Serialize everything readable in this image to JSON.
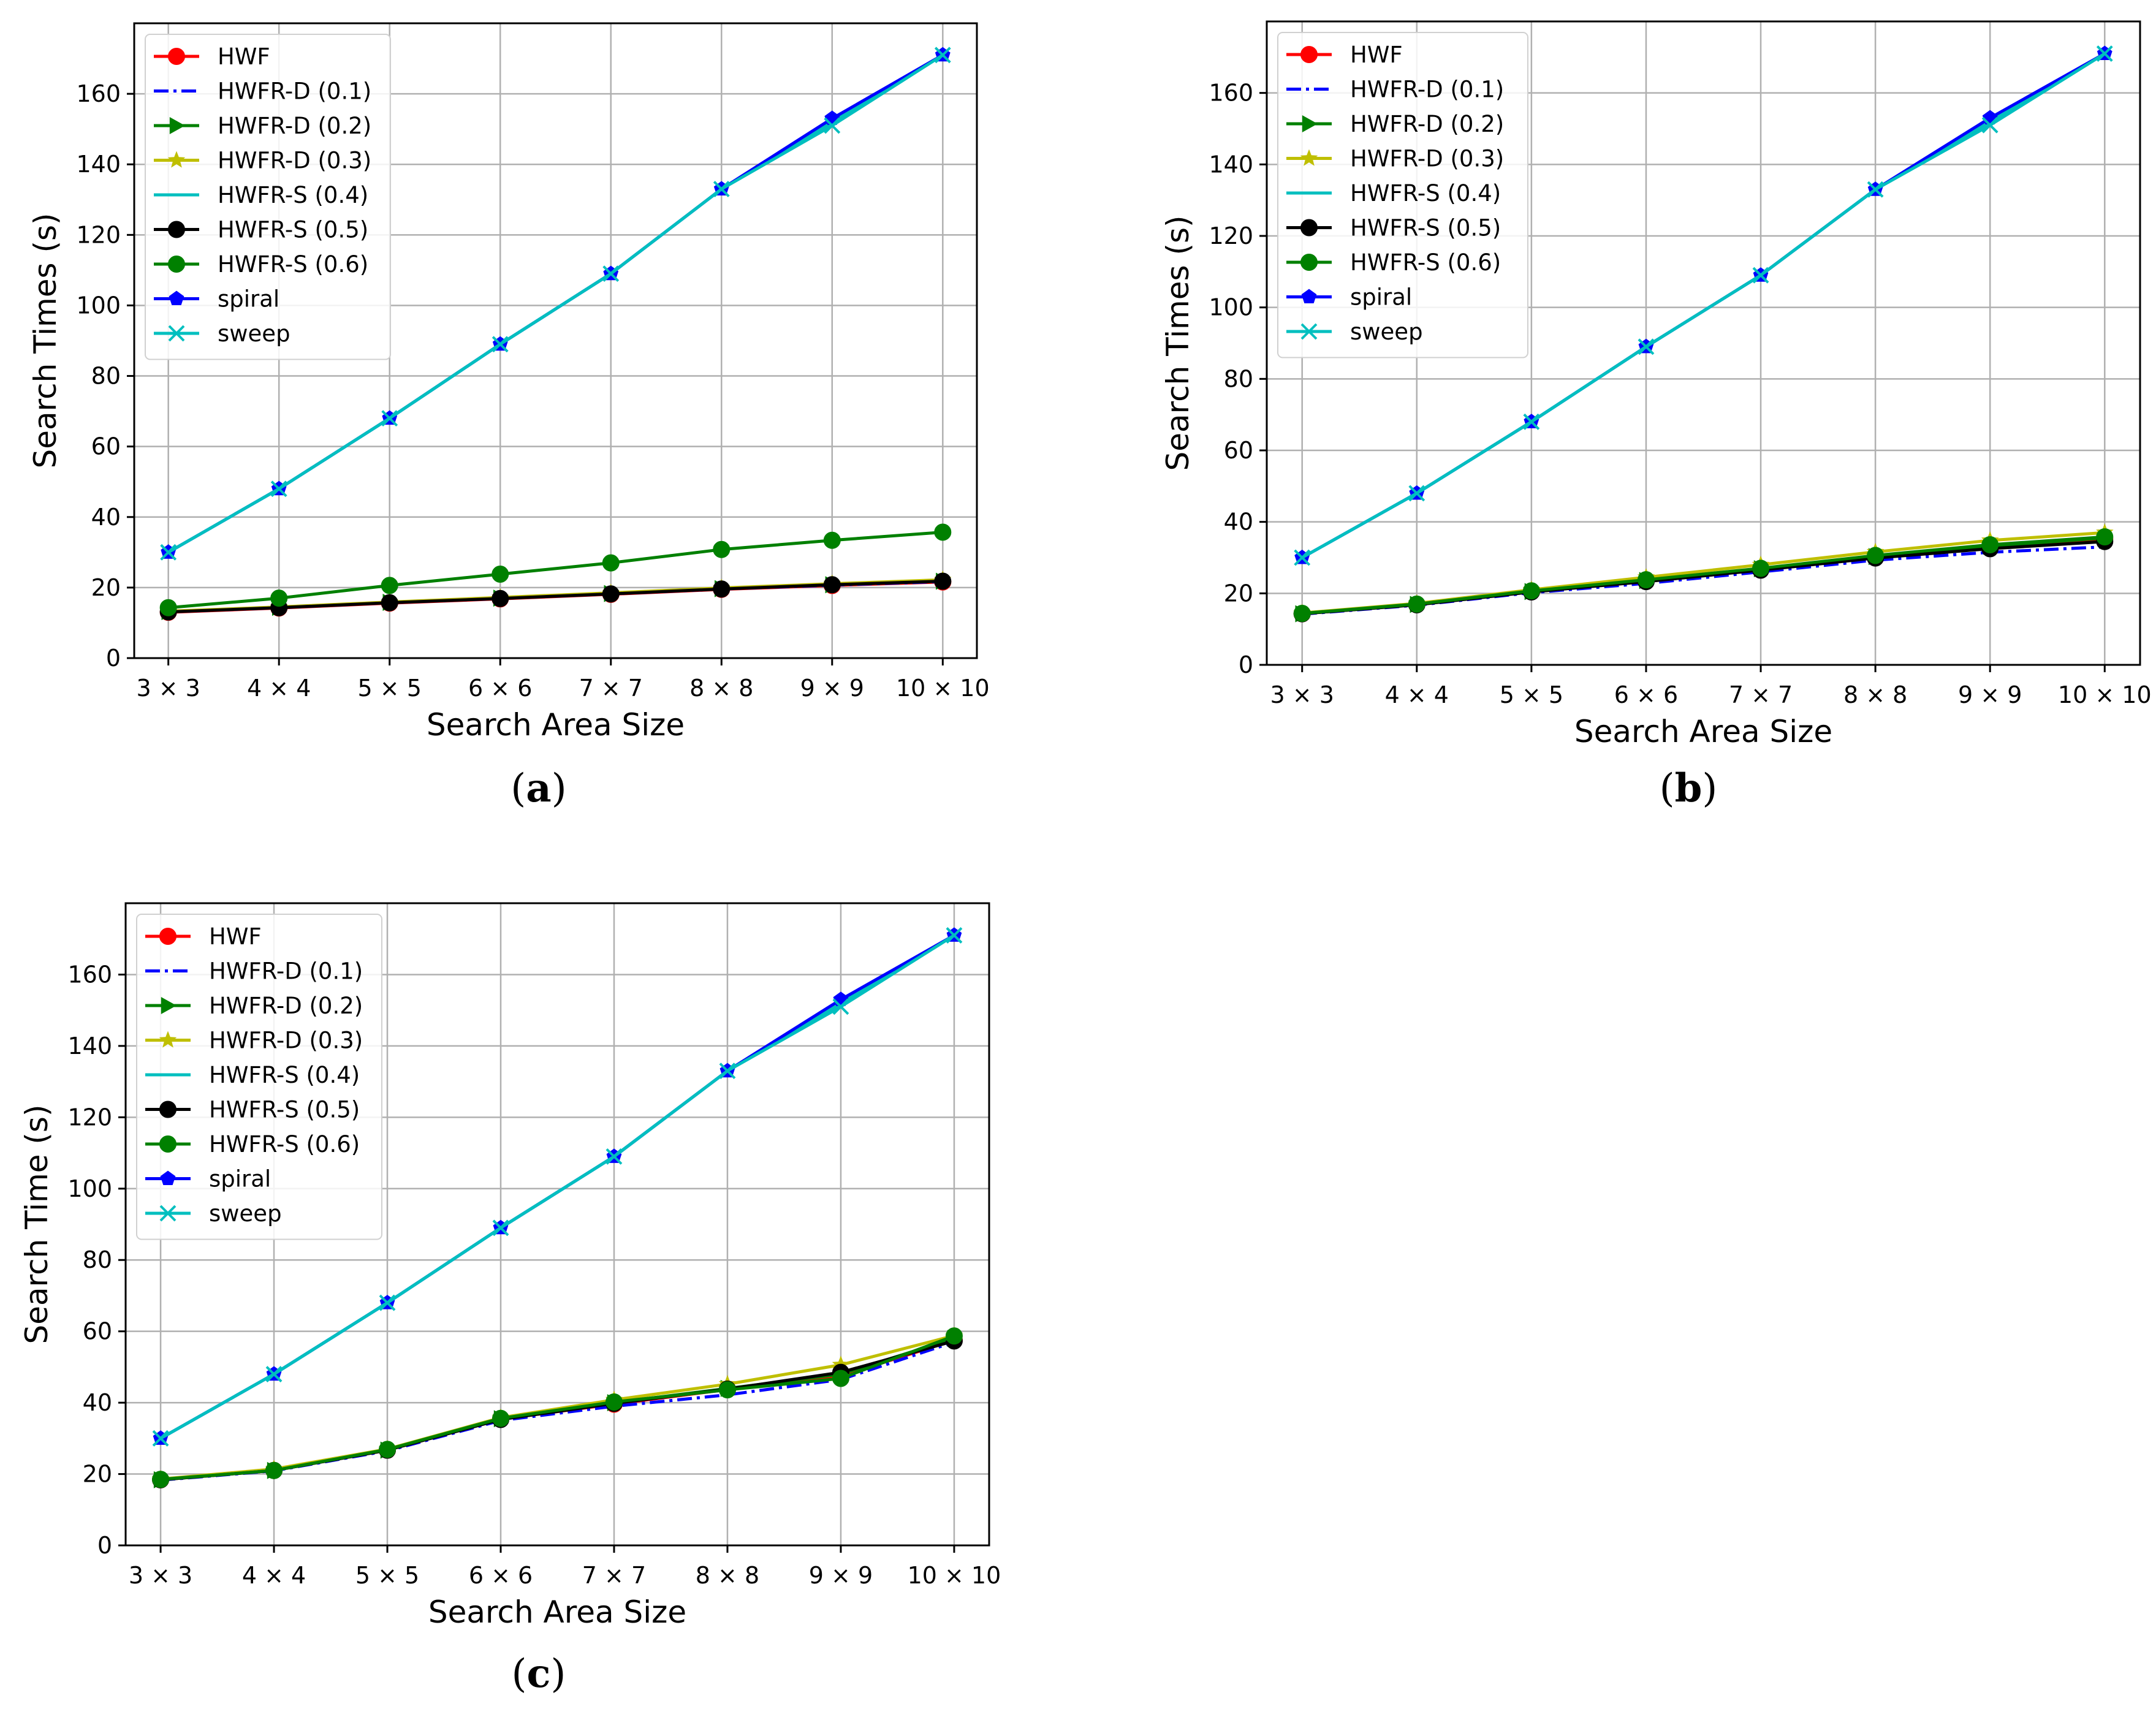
{
  "figure": {
    "panel_labels": [
      "a",
      "b",
      "c"
    ]
  },
  "chart_data": [
    {
      "panel": "a",
      "type": "line",
      "title": "",
      "xlabel": "Search Area Size",
      "ylabel": "Search Times (s)",
      "categories": [
        "3 × 3",
        "4 × 4",
        "5 × 5",
        "6 × 6",
        "7 × 7",
        "8 × 8",
        "9 × 9",
        "10 × 10"
      ],
      "ylim": [
        0,
        180
      ],
      "yticks": [
        0,
        20,
        40,
        60,
        80,
        100,
        120,
        140,
        160
      ],
      "grid": true,
      "legend_position": "top-left",
      "series": [
        {
          "name": "HWF",
          "color": "#ff0000",
          "marker": "circle",
          "dash": "solid",
          "values": [
            13,
            14.2,
            15.6,
            16.8,
            18.1,
            19.5,
            20.6,
            21.6
          ]
        },
        {
          "name": "HWFR-D (0.1)",
          "color": "#0000ff",
          "marker": "none",
          "dash": "dashdot",
          "values": [
            13.1,
            14.3,
            15.7,
            16.9,
            18.2,
            19.6,
            20.7,
            21.7
          ]
        },
        {
          "name": "HWFR-D (0.2)",
          "color": "#008000",
          "marker": "triangle-right",
          "dash": "solid",
          "values": [
            13.2,
            14.4,
            15.8,
            17.0,
            18.3,
            19.7,
            20.8,
            21.8
          ]
        },
        {
          "name": "HWFR-D (0.3)",
          "color": "#bfbf00",
          "marker": "star",
          "dash": "solid",
          "values": [
            13.3,
            14.5,
            15.9,
            17.2,
            18.5,
            19.9,
            21.1,
            22.2
          ]
        },
        {
          "name": "HWFR-S (0.4)",
          "color": "#00bfbf",
          "marker": "none",
          "dash": "solid",
          "values": [
            30,
            48,
            68,
            89,
            109,
            133,
            152,
            171
          ]
        },
        {
          "name": "HWFR-S (0.5)",
          "color": "#000000",
          "marker": "circle",
          "dash": "solid",
          "values": [
            13.1,
            14.3,
            15.7,
            16.9,
            18.2,
            19.6,
            20.8,
            21.8
          ]
        },
        {
          "name": "HWFR-S (0.6)",
          "color": "#008000",
          "marker": "circle",
          "dash": "solid",
          "values": [
            14.3,
            17,
            20.6,
            23.8,
            27,
            30.8,
            33.4,
            35.7
          ]
        },
        {
          "name": "spiral",
          "color": "#0000ff",
          "marker": "pentagon",
          "dash": "solid",
          "values": [
            30,
            48,
            68,
            89,
            109,
            133,
            153,
            171
          ]
        },
        {
          "name": "sweep",
          "color": "#00bfbf",
          "marker": "x",
          "dash": "solid",
          "values": [
            30,
            48,
            68,
            89,
            109,
            133,
            151,
            171
          ]
        }
      ]
    },
    {
      "panel": "b",
      "type": "line",
      "title": "",
      "xlabel": "Search Area Size",
      "ylabel": "Search Times (s)",
      "categories": [
        "3 × 3",
        "4 × 4",
        "5 × 5",
        "6 × 6",
        "7 × 7",
        "8 × 8",
        "9 × 9",
        "10 × 10"
      ],
      "ylim": [
        0,
        180
      ],
      "yticks": [
        0,
        20,
        40,
        60,
        80,
        100,
        120,
        140,
        160
      ],
      "grid": true,
      "legend_position": "top-left",
      "series": [
        {
          "name": "HWF",
          "color": "#ff0000",
          "marker": "circle",
          "dash": "solid",
          "values": [
            14.3,
            16.9,
            20.5,
            23.5,
            26.8,
            30.2,
            33.0,
            35.2
          ]
        },
        {
          "name": "HWFR-D (0.1)",
          "color": "#0000ff",
          "marker": "none",
          "dash": "dashdot",
          "values": [
            14.2,
            16.7,
            20.2,
            22.8,
            26.0,
            29.3,
            31.5,
            33.0
          ]
        },
        {
          "name": "HWFR-D (0.2)",
          "color": "#008000",
          "marker": "triangle-right",
          "dash": "solid",
          "values": [
            14.3,
            16.9,
            20.5,
            23.6,
            26.9,
            30.3,
            33.2,
            35.5
          ]
        },
        {
          "name": "HWFR-D (0.3)",
          "color": "#bfbf00",
          "marker": "star",
          "dash": "solid",
          "values": [
            14.5,
            17.2,
            21.0,
            24.5,
            28.0,
            31.6,
            34.8,
            37.0
          ]
        },
        {
          "name": "HWFR-S (0.4)",
          "color": "#00bfbf",
          "marker": "none",
          "dash": "solid",
          "values": [
            30,
            48,
            68,
            89,
            109,
            133,
            152,
            171
          ]
        },
        {
          "name": "HWFR-S (0.5)",
          "color": "#000000",
          "marker": "circle",
          "dash": "solid",
          "values": [
            14.3,
            16.8,
            20.4,
            23.3,
            26.5,
            29.9,
            32.5,
            34.5
          ]
        },
        {
          "name": "HWFR-S (0.6)",
          "color": "#008000",
          "marker": "circle",
          "dash": "solid",
          "values": [
            14.4,
            17.0,
            20.7,
            23.8,
            27.0,
            30.6,
            33.6,
            35.8
          ]
        },
        {
          "name": "spiral",
          "color": "#0000ff",
          "marker": "pentagon",
          "dash": "solid",
          "values": [
            30,
            48,
            68,
            89,
            109,
            133,
            153,
            171
          ]
        },
        {
          "name": "sweep",
          "color": "#00bfbf",
          "marker": "x",
          "dash": "solid",
          "values": [
            30,
            48,
            68,
            89,
            109,
            133,
            151,
            171
          ]
        }
      ]
    },
    {
      "panel": "c",
      "type": "line",
      "title": "",
      "xlabel": "Search Area Size",
      "ylabel": "Search Time (s)",
      "categories": [
        "3 × 3",
        "4 × 4",
        "5 × 5",
        "6 × 6",
        "7 × 7",
        "8 × 8",
        "9 × 9",
        "10 × 10"
      ],
      "ylim": [
        0,
        180
      ],
      "yticks": [
        0,
        20,
        40,
        60,
        80,
        100,
        120,
        140,
        160
      ],
      "grid": true,
      "legend_position": "top-left",
      "series": [
        {
          "name": "HWF",
          "color": "#ff0000",
          "marker": "circle",
          "dash": "solid",
          "values": [
            18.4,
            21,
            26.7,
            35.4,
            39.6,
            43.7,
            47.5,
            57.5
          ]
        },
        {
          "name": "HWFR-D (0.1)",
          "color": "#0000ff",
          "marker": "none",
          "dash": "dashdot",
          "values": [
            18.3,
            20.9,
            26.5,
            35.0,
            39.0,
            42.2,
            46.5,
            57.0
          ]
        },
        {
          "name": "HWFR-D (0.2)",
          "color": "#008000",
          "marker": "triangle-right",
          "dash": "solid",
          "values": [
            18.4,
            21.0,
            26.7,
            35.5,
            40.0,
            44.0,
            48.0,
            58.0
          ]
        },
        {
          "name": "HWFR-D (0.3)",
          "color": "#bfbf00",
          "marker": "star",
          "dash": "solid",
          "values": [
            18.6,
            21.4,
            27.0,
            35.8,
            40.8,
            45.2,
            50.6,
            58.8
          ]
        },
        {
          "name": "HWFR-S (0.4)",
          "color": "#00bfbf",
          "marker": "none",
          "dash": "solid",
          "values": [
            30,
            48,
            68,
            89,
            109,
            133,
            152,
            171
          ]
        },
        {
          "name": "HWFR-S (0.5)",
          "color": "#000000",
          "marker": "circle",
          "dash": "solid",
          "values": [
            18.4,
            21.0,
            26.7,
            35.3,
            39.8,
            43.8,
            48.5,
            57.3
          ]
        },
        {
          "name": "HWFR-S (0.6)",
          "color": "#008000",
          "marker": "circle",
          "dash": "solid",
          "values": [
            18.5,
            21.0,
            26.9,
            35.6,
            40.2,
            43.6,
            46.8,
            58.7
          ]
        },
        {
          "name": "spiral",
          "color": "#0000ff",
          "marker": "pentagon",
          "dash": "solid",
          "values": [
            30,
            48,
            68,
            89,
            109,
            133,
            153,
            171
          ]
        },
        {
          "name": "sweep",
          "color": "#00bfbf",
          "marker": "x",
          "dash": "solid",
          "values": [
            30,
            48,
            68,
            89,
            109,
            133,
            151,
            171
          ]
        }
      ]
    }
  ]
}
